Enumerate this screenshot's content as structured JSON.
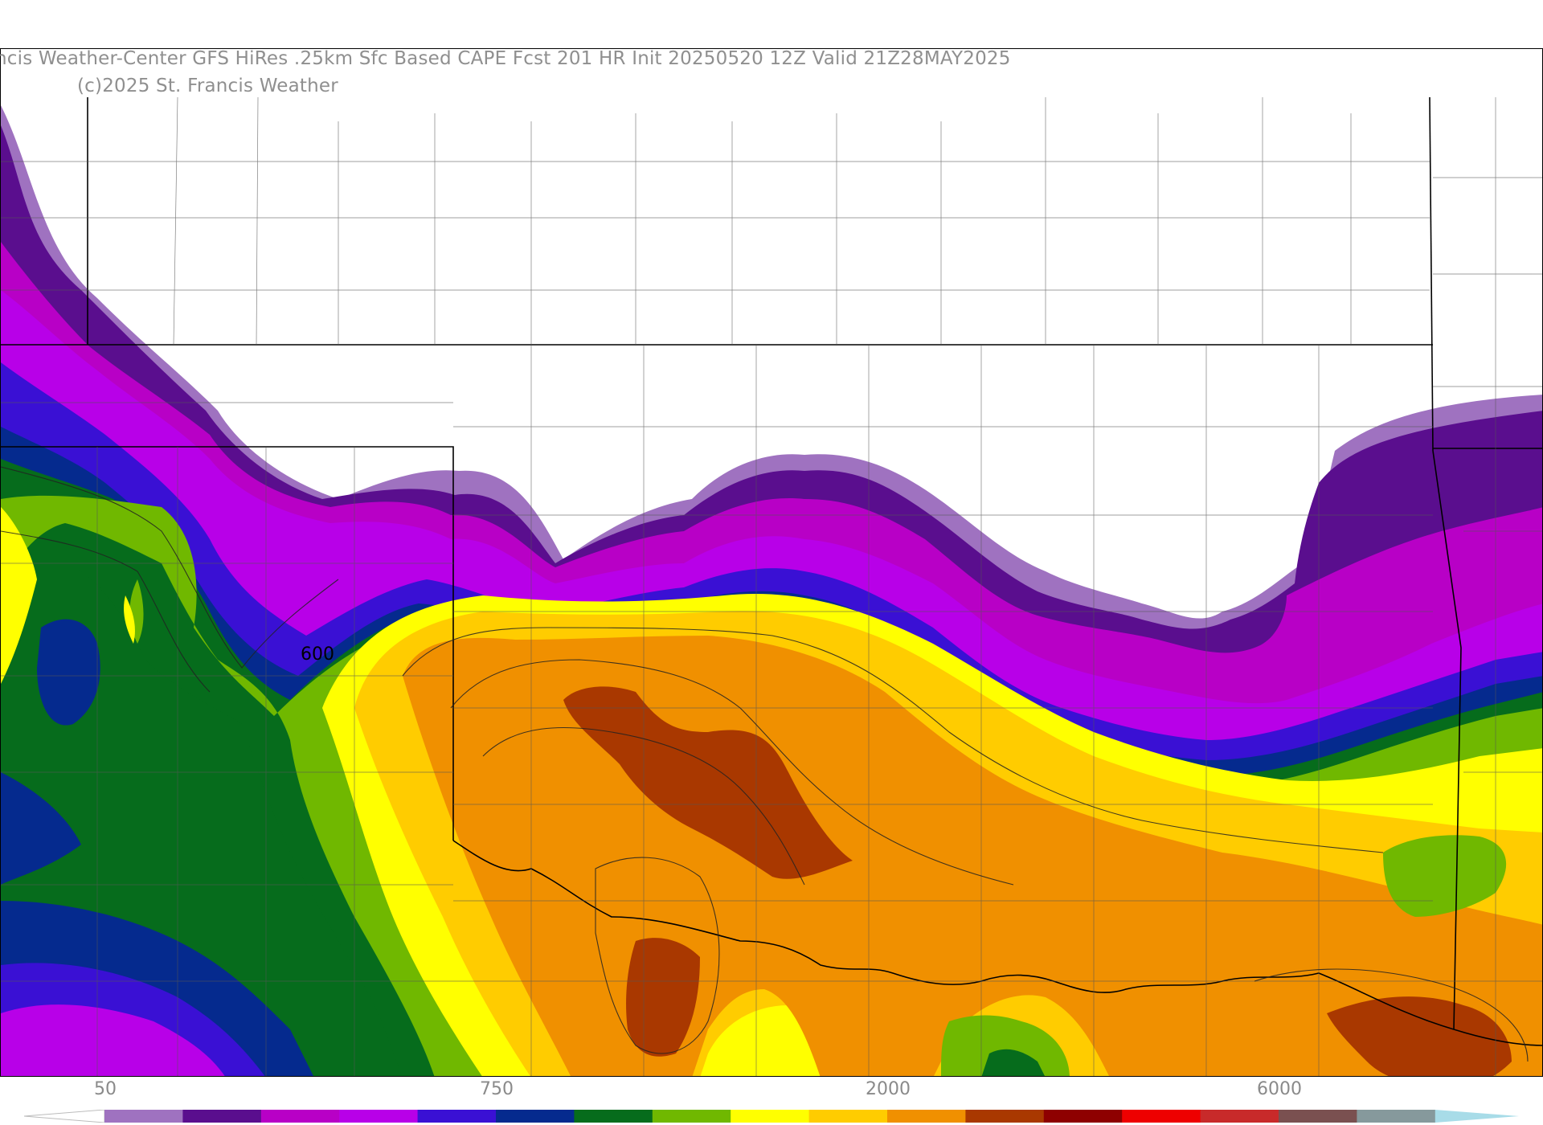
{
  "header": {
    "title": "ncis Weather-Center GFS HiRes .25km Sfc Based CAPE  Fcst 201 HR Init 20250520 12Z  Valid 21Z28MAY2025",
    "copyright": "(c)2025 St. Francis Weather"
  },
  "map": {
    "contour_label": "600",
    "colors": {
      "c1": "#9f72c0",
      "c2": "#5a0e8e",
      "c3": "#b800c6",
      "c4": "#b800e8",
      "c5": "#3a10d4",
      "c6": "#052a8e",
      "c7": "#066c1c",
      "c8": "#70b800",
      "c9": "#ffff00",
      "c10": "#ffcc00",
      "c11": "#f09000",
      "c12": "#a93800"
    }
  },
  "colorbar": {
    "labels": [
      "50",
      "750",
      "2000",
      "6000"
    ],
    "colors": [
      "#9f72c0",
      "#5a0e8e",
      "#b800c6",
      "#b800e8",
      "#3a10d4",
      "#052a8e",
      "#066c1c",
      "#70b800",
      "#ffff00",
      "#ffcc00",
      "#f09000",
      "#a93800",
      "#8e0000",
      "#ee0000",
      "#c82a2a",
      "#7a5050",
      "#86999c"
    ],
    "end_right": "#a8dce8"
  }
}
